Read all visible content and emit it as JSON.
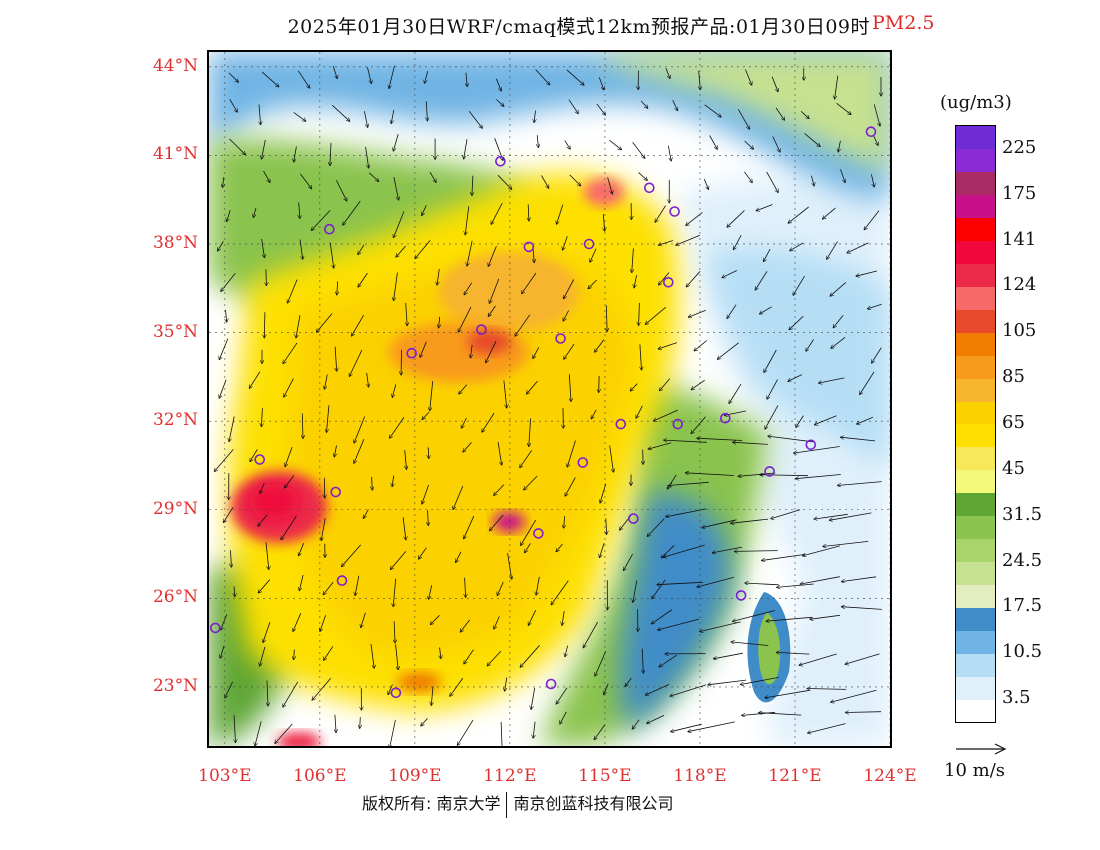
{
  "header": {
    "title": "2025年01月30日WRF/cmaq模式12km预报产品:01月30日09时",
    "variable": "PM2.5",
    "variable_color": "#e02a2a"
  },
  "map": {
    "extent": {
      "lon_min": 102.5,
      "lon_max": 124,
      "lat_min": 21.0,
      "lat_max": 44.5
    },
    "lat_labels": [
      "44°N",
      "41°N",
      "38°N",
      "35°N",
      "32°N",
      "29°N",
      "26°N",
      "23°N"
    ],
    "lat_values": [
      44,
      41,
      38,
      35,
      32,
      29,
      26,
      23
    ],
    "lon_labels": [
      "103°E",
      "106°E",
      "109°E",
      "112°E",
      "115°E",
      "118°E",
      "121°E",
      "124°E"
    ],
    "lon_values": [
      103,
      106,
      109,
      112,
      115,
      118,
      121,
      124
    ],
    "axis_label_color": "#e03030"
  },
  "legend": {
    "unit": "(ug/m3)",
    "colors": [
      "#ffffff",
      "#dff0fb",
      "#b5def5",
      "#6fb4e4",
      "#3f8cc8",
      "#e3eec0",
      "#c6e18f",
      "#a9d46b",
      "#8ac34e",
      "#5fa634",
      "#f3f77a",
      "#f7e85a",
      "#fde000",
      "#fbd100",
      "#f7b42d",
      "#f89a1c",
      "#f07c00",
      "#e64a2a",
      "#f86a6a",
      "#ec2b4a",
      "#f0083c",
      "#fc0000",
      "#c8108a",
      "#a82b63",
      "#8b2bd6",
      "#6f2bd6"
    ],
    "labels": [
      "3.5",
      "10.5",
      "17.5",
      "24.5",
      "31.5",
      "45",
      "65",
      "85",
      "105",
      "124",
      "141",
      "175",
      "225"
    ],
    "reference_vector_label": "10 m/s"
  },
  "footer": {
    "rights": "版权所有: 南京大学",
    "company": "南京创蓝科技有限公司"
  }
}
